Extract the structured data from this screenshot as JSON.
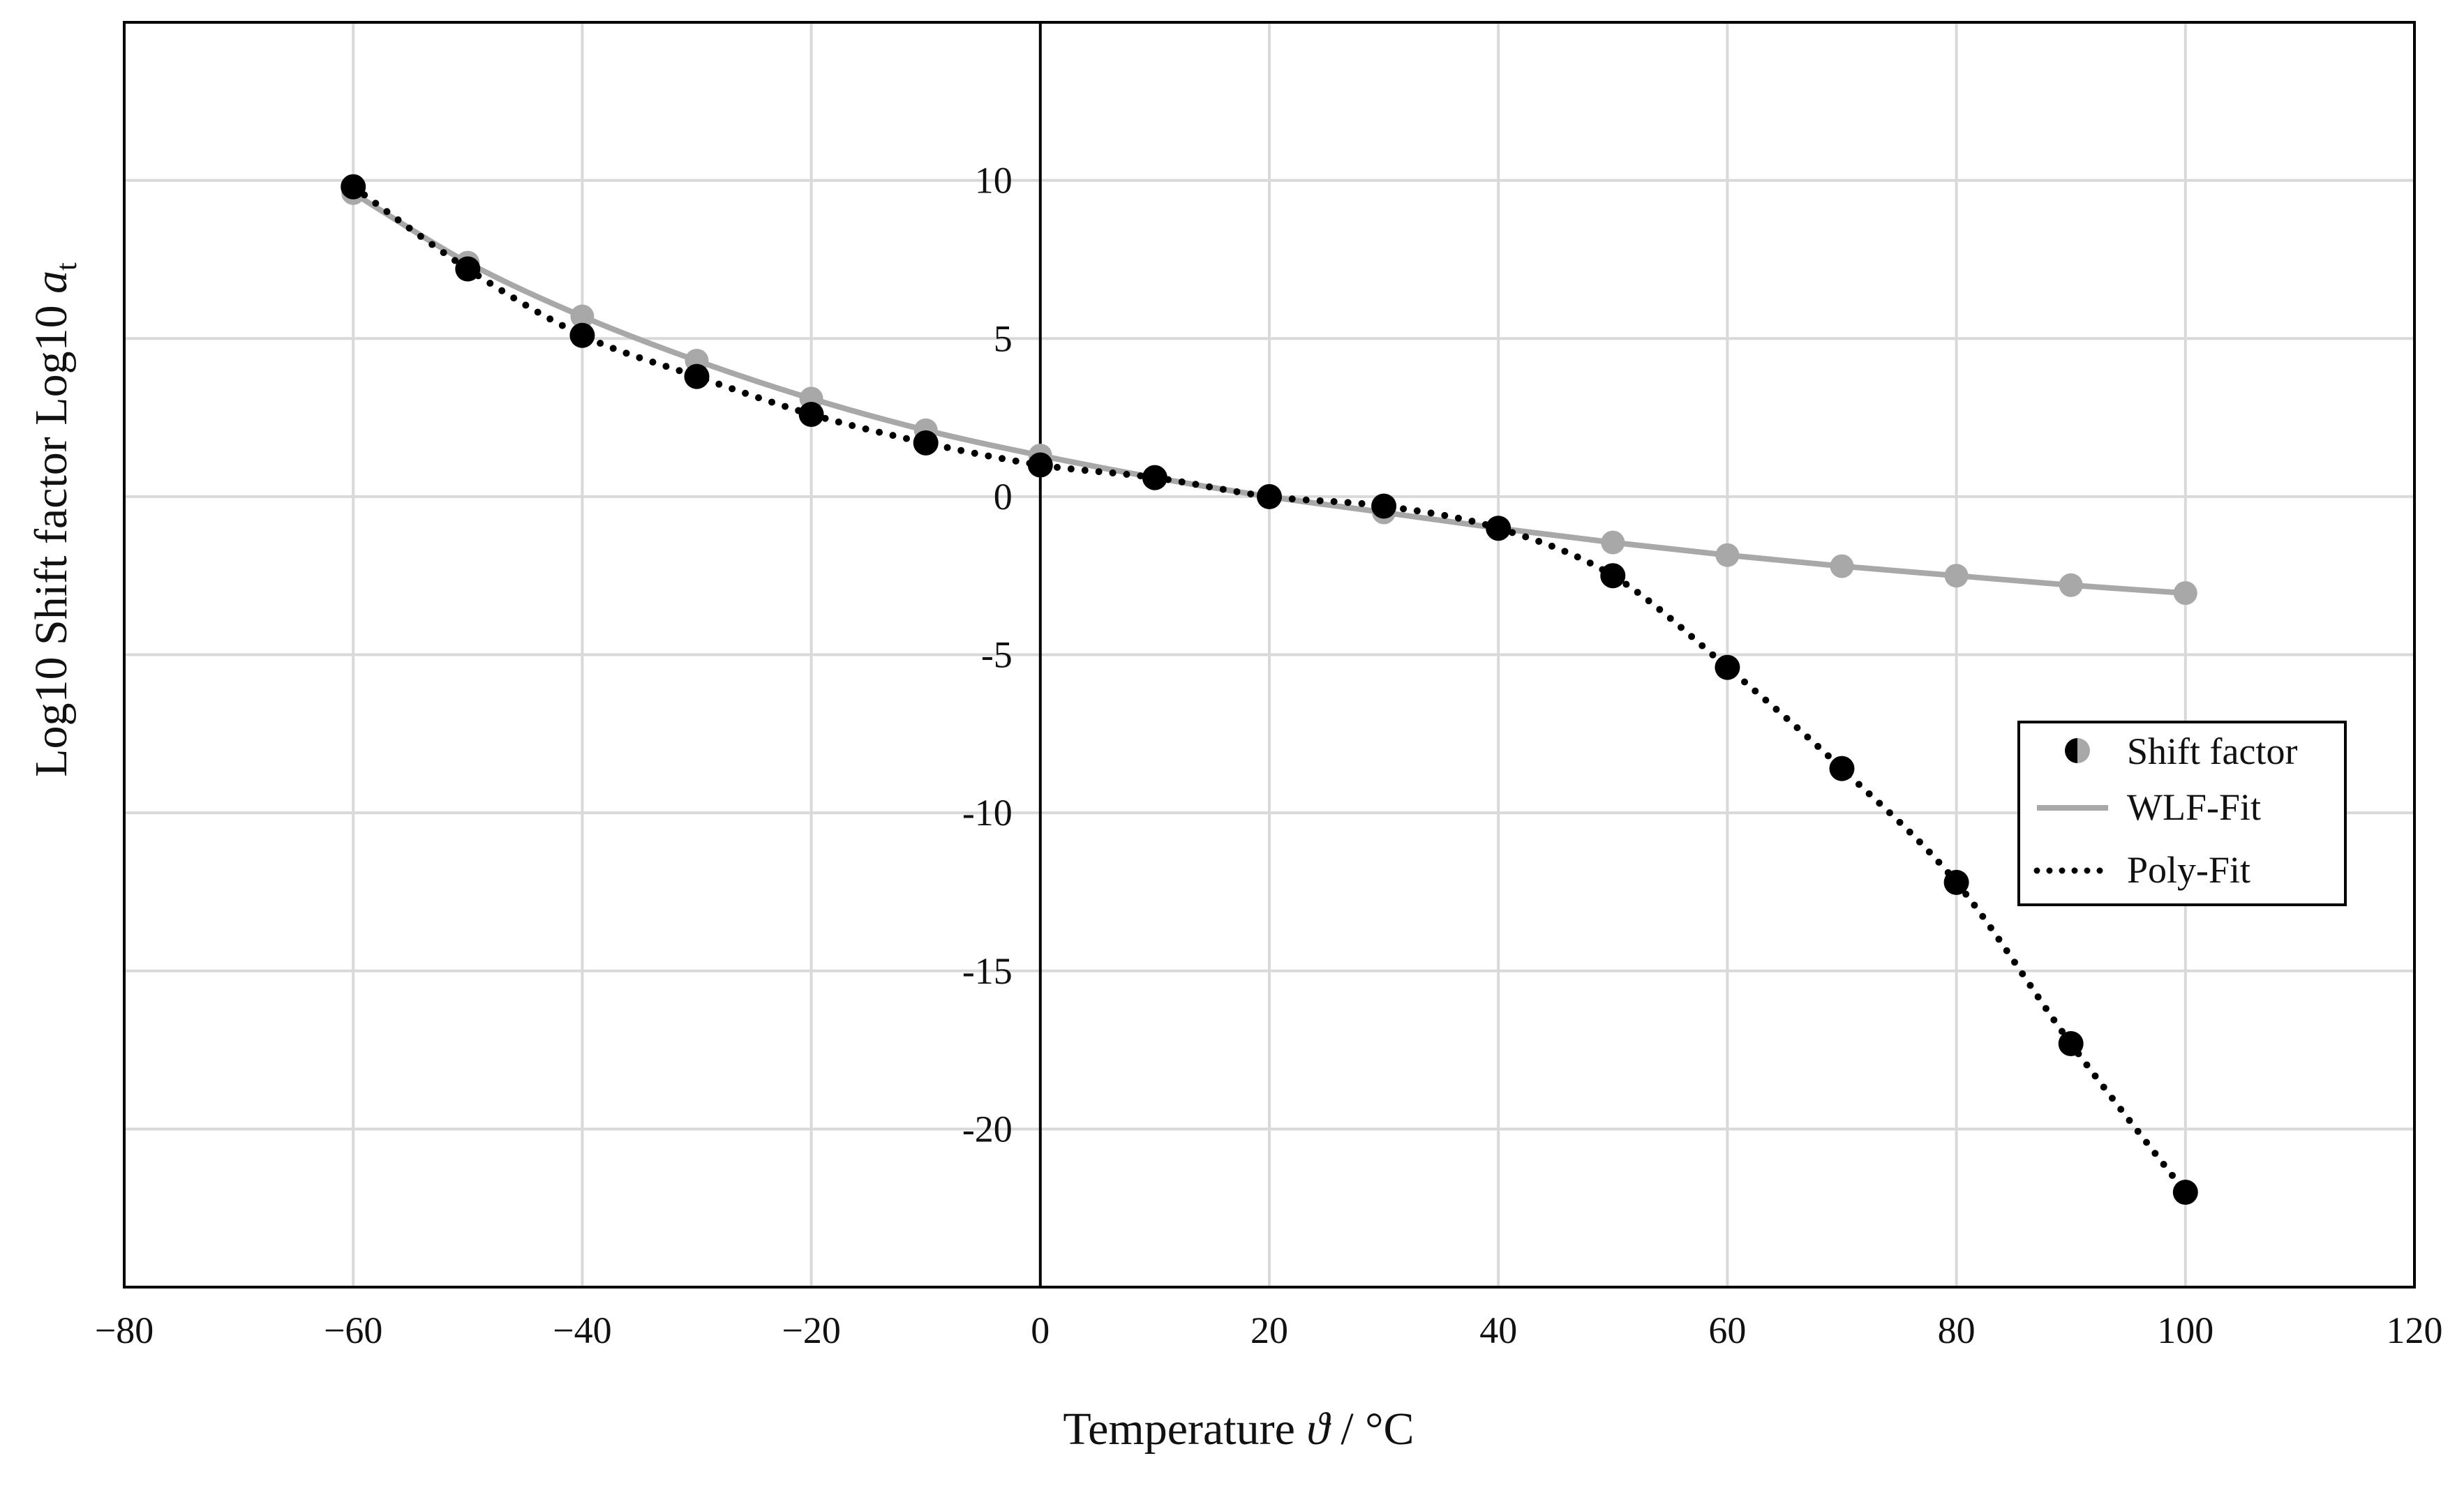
{
  "chart_data": {
    "type": "line",
    "title": "",
    "xlabel": "Temperature",
    "xlabel_symbol": "ϑ",
    "xlabel_unit": "/ °C",
    "ylabel": "Log10 Shift factor Log10",
    "ylabel_symbol": "a",
    "ylabel_subscript": "t",
    "xlim": [
      -80,
      120
    ],
    "ylim": [
      -25,
      15
    ],
    "x_ticks": [
      -80,
      -60,
      -40,
      -20,
      0,
      20,
      40,
      60,
      80,
      100,
      120
    ],
    "x_tick_labels": [
      "−80",
      "−60",
      "−40",
      "−20",
      "0",
      "20",
      "40",
      "60",
      "80",
      "100",
      "120"
    ],
    "y_ticks": [
      -20,
      -15,
      -10,
      -5,
      0,
      5,
      10
    ],
    "y_tick_labels": [
      "-20",
      "-15",
      "-10",
      "-5",
      "0",
      "5",
      "10"
    ],
    "grid": true,
    "legend_position": "center-right",
    "legend": [
      "Shift factor",
      "WLF-Fit",
      "Poly-Fit"
    ],
    "series": [
      {
        "name": "Shift factor (WLF)",
        "kind": "points",
        "color": "#a8a8a8",
        "x": [
          -60,
          -50,
          -40,
          -30,
          -20,
          -10,
          0,
          10,
          20,
          30,
          40,
          50,
          60,
          70,
          80,
          90,
          100
        ],
        "y": [
          9.6,
          7.4,
          5.7,
          4.3,
          3.1,
          2.1,
          1.3,
          0.6,
          0.0,
          -0.5,
          -1.0,
          -1.45,
          -1.85,
          -2.2,
          -2.5,
          -2.8,
          -3.05
        ]
      },
      {
        "name": "Shift factor (Poly)",
        "kind": "points",
        "color": "#000000",
        "x": [
          -60,
          -50,
          -40,
          -30,
          -20,
          -10,
          0,
          10,
          20,
          30,
          40,
          50,
          60,
          70,
          80,
          90,
          100
        ],
        "y": [
          9.8,
          7.2,
          5.1,
          3.8,
          2.6,
          1.7,
          1.0,
          0.6,
          0.0,
          -0.3,
          -1.0,
          -2.5,
          -5.4,
          -8.6,
          -12.2,
          -17.3,
          -22.0
        ]
      },
      {
        "name": "WLF-Fit",
        "kind": "line",
        "style": "solid",
        "color": "#a8a8a8",
        "x": [
          -60,
          -50,
          -40,
          -30,
          -20,
          -10,
          0,
          10,
          20,
          30,
          40,
          50,
          60,
          70,
          80,
          90,
          100
        ],
        "y": [
          9.6,
          7.4,
          5.7,
          4.3,
          3.1,
          2.1,
          1.3,
          0.6,
          0.0,
          -0.5,
          -1.0,
          -1.45,
          -1.85,
          -2.2,
          -2.5,
          -2.8,
          -3.05
        ]
      },
      {
        "name": "Poly-Fit",
        "kind": "line",
        "style": "dotted",
        "color": "#000000",
        "x": [
          -60,
          -50,
          -40,
          -30,
          -20,
          -10,
          0,
          10,
          20,
          30,
          40,
          50,
          60,
          70,
          80,
          90,
          100
        ],
        "y": [
          9.8,
          7.2,
          5.1,
          3.8,
          2.6,
          1.7,
          1.0,
          0.6,
          0.0,
          -0.3,
          -1.0,
          -2.5,
          -5.4,
          -8.6,
          -12.2,
          -17.3,
          -22.0
        ]
      }
    ]
  }
}
